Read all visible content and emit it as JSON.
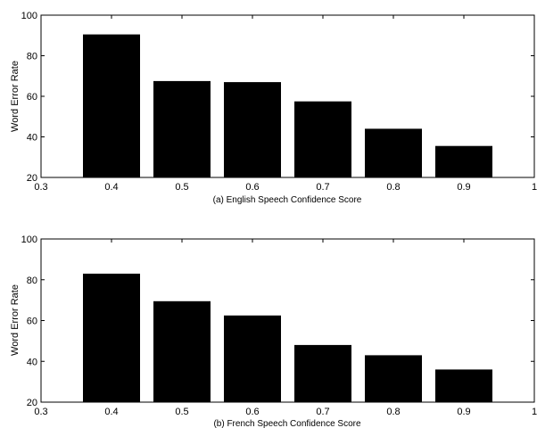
{
  "chart_data": [
    {
      "type": "bar",
      "x": [
        0.4,
        0.5,
        0.6,
        0.7,
        0.8,
        0.9
      ],
      "values": [
        90.5,
        67.5,
        67,
        57.5,
        44,
        35.5
      ],
      "xlim": [
        0.3,
        1.0
      ],
      "ylim": [
        20,
        100
      ],
      "xticks": [
        "0.3",
        "0.4",
        "0.5",
        "0.6",
        "0.7",
        "0.8",
        "0.9",
        "1"
      ],
      "yticks": [
        "20",
        "40",
        "60",
        "80",
        "100"
      ],
      "xlabel": "(a) English Speech Confidence Score",
      "ylabel": "Word Error Rate",
      "bar_color": "#000000",
      "grid": false,
      "legend": "none"
    },
    {
      "type": "bar",
      "x": [
        0.4,
        0.5,
        0.6,
        0.7,
        0.8,
        0.9
      ],
      "values": [
        83,
        69.5,
        62.5,
        48,
        43,
        36
      ],
      "xlim": [
        0.3,
        1.0
      ],
      "ylim": [
        20,
        100
      ],
      "xticks": [
        "0.3",
        "0.4",
        "0.5",
        "0.6",
        "0.7",
        "0.8",
        "0.9",
        "1"
      ],
      "yticks": [
        "20",
        "40",
        "60",
        "80",
        "100"
      ],
      "xlabel": "(b) French Speech Confidence Score",
      "ylabel": "Word Error Rate",
      "bar_color": "#000000",
      "grid": false,
      "legend": "none"
    }
  ]
}
